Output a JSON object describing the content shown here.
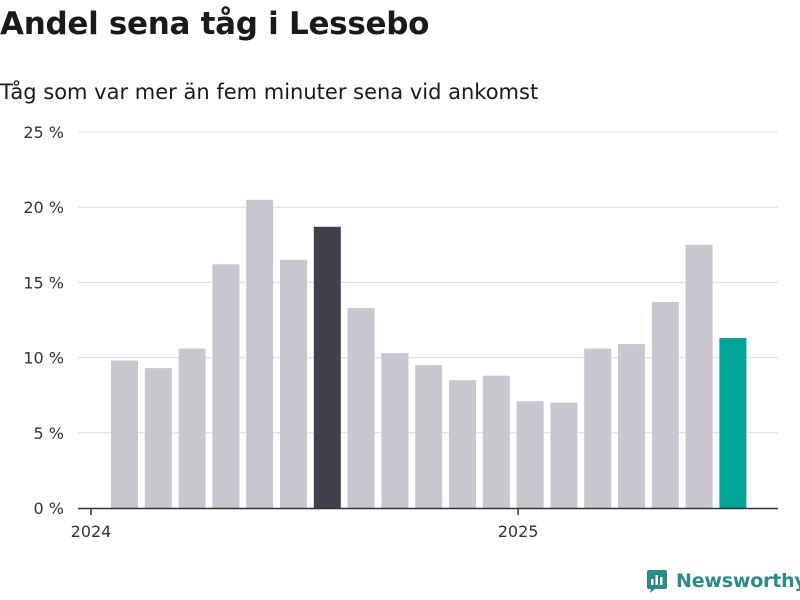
{
  "header": {
    "title": "Andel sena tåg i Lessebo",
    "subtitle": "Tåg som var mer än fem minuter sena vid ankomst"
  },
  "brand": {
    "name": "Newsworthy",
    "icon": "newsworthy-logo-icon",
    "color": "#2a8a8c"
  },
  "colors": {
    "bar_default": "#c8c7cf",
    "bar_highlight_dark": "#403f4c",
    "bar_highlight_teal": "#00a398",
    "grid": "#dcdcdc",
    "axis": "#333333"
  },
  "chart_data": {
    "type": "bar",
    "title": "Andel sena tåg i Lessebo",
    "subtitle": "Tåg som var mer än fem minuter sena vid ankomst",
    "x": [
      "2024-01",
      "2024-02",
      "2024-03",
      "2024-04",
      "2024-05",
      "2024-06",
      "2024-07",
      "2024-08",
      "2024-09",
      "2024-10",
      "2024-11",
      "2024-12",
      "2025-01",
      "2025-02",
      "2025-03",
      "2025-04",
      "2025-05",
      "2025-06",
      "2025-07"
    ],
    "values": [
      9.8,
      9.3,
      10.6,
      16.2,
      20.5,
      16.5,
      18.7,
      13.3,
      10.3,
      9.5,
      8.5,
      8.8,
      7.1,
      7.0,
      10.6,
      10.9,
      13.7,
      17.5,
      11.3
    ],
    "highlight": {
      "2024-07": "dark",
      "2025-07": "teal"
    },
    "x_tick_labels": [
      {
        "at": "2024-01",
        "label": "2024"
      },
      {
        "at": "2025-01",
        "label": "2025"
      }
    ],
    "y_ticks": [
      0,
      5,
      10,
      15,
      20,
      25
    ],
    "y_tick_labels": [
      "0 %",
      "5 %",
      "10 %",
      "15 %",
      "20 %",
      "25 %"
    ],
    "ylim": [
      0,
      25
    ],
    "xlabel": "",
    "ylabel": "",
    "grid": true,
    "legend": "none"
  }
}
